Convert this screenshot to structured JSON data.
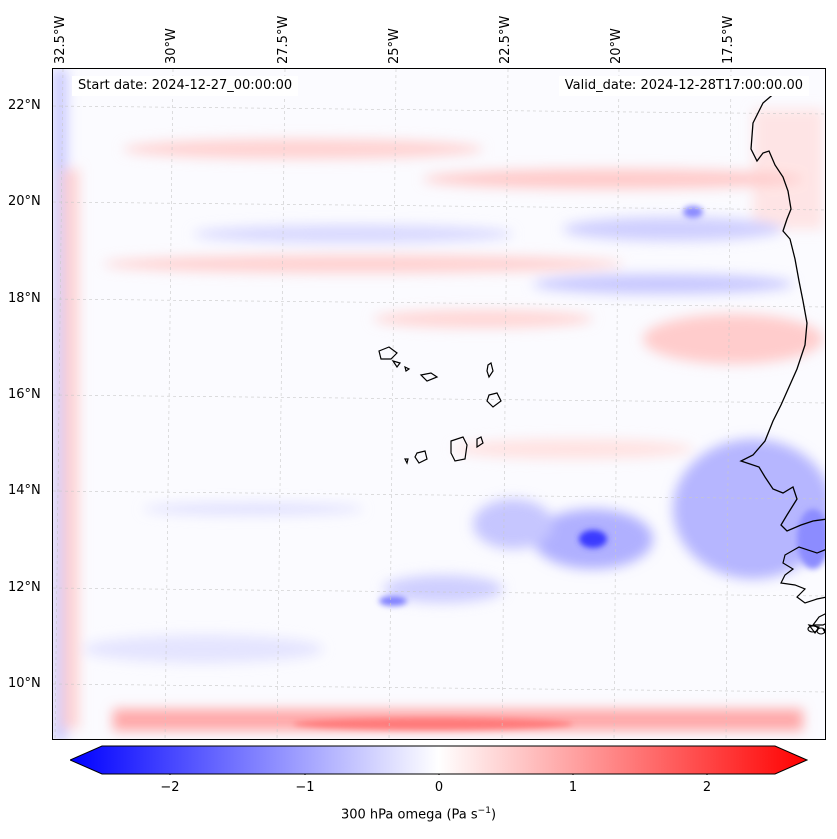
{
  "header": {
    "start_date": "Start date: 2024-12-27_00:00:00",
    "valid_date": "Valid_date: 2024-12-28T17:00:00.00"
  },
  "axes": {
    "lon_labels": [
      "32.5°W",
      "30°W",
      "27.5°W",
      "25°W",
      "22.5°W",
      "20°W",
      "17.5°W"
    ],
    "lat_labels": [
      "22°N",
      "20°N",
      "18°N",
      "16°N",
      "14°N",
      "12°N",
      "10°N"
    ]
  },
  "colorbar": {
    "ticks": [
      "−2",
      "−1",
      "0",
      "1",
      "2"
    ],
    "label": "300 hPa omega (Pa s",
    "label_sup": "−1",
    "label_end": ")",
    "cmap": "bwr",
    "range": [
      -2.6,
      2.6
    ]
  },
  "colors": {
    "blue": "#0000ff",
    "white": "#ffffff",
    "red": "#ff0000",
    "coast": "#000000"
  }
}
